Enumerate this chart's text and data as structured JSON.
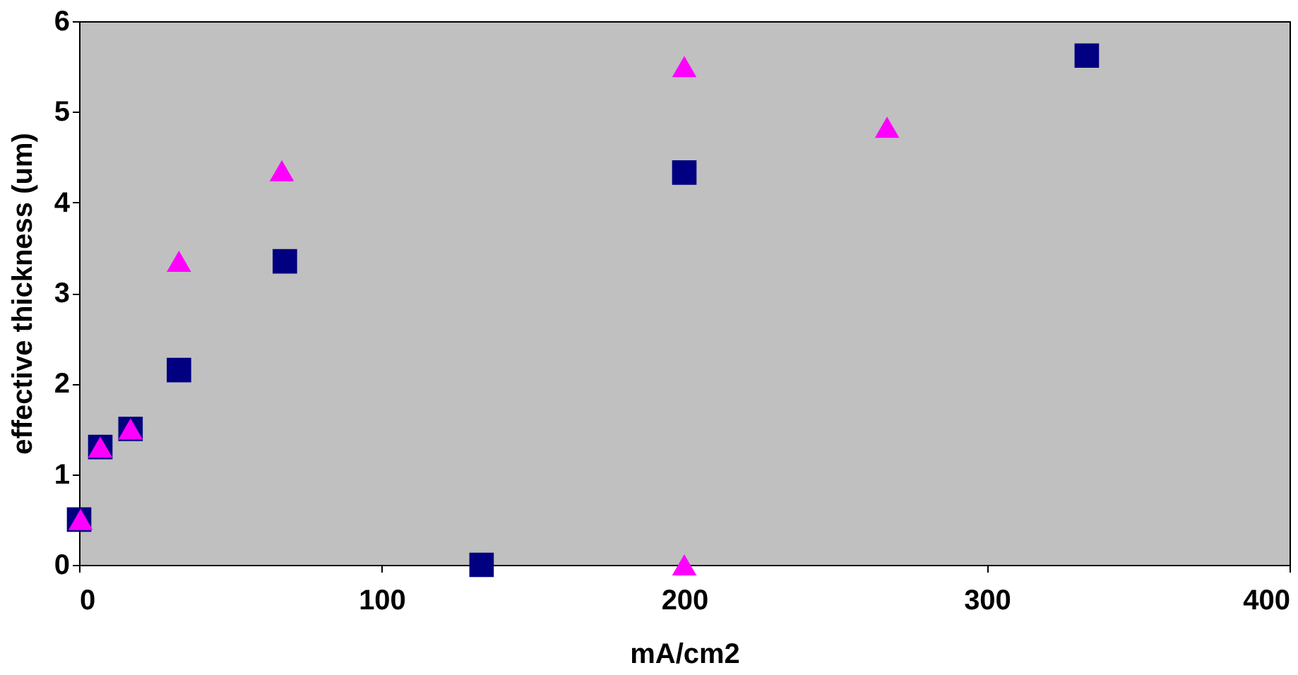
{
  "chart_data": {
    "type": "scatter",
    "xlabel": "mA/cm2",
    "ylabel": "effective thickness (um)",
    "xlim": [
      0,
      400
    ],
    "xticks": [
      0,
      100,
      200,
      300,
      400
    ],
    "ylim": [
      0,
      6
    ],
    "yticks": [
      0,
      1,
      2,
      3,
      4,
      5,
      6
    ],
    "grid": false,
    "legend": false,
    "series": [
      {
        "color": "#000080",
        "marker": "square",
        "x": [
          0,
          7,
          17,
          33,
          68,
          133,
          200,
          333
        ],
        "values": [
          0.5,
          1.3,
          1.5,
          2.15,
          3.35,
          0,
          4.33,
          5.62
        ]
      },
      {
        "color": "#ff00ff",
        "marker": "triangle",
        "x": [
          0.5,
          7,
          17,
          33,
          67,
          200,
          200,
          267
        ],
        "values": [
          0.5,
          1.3,
          1.5,
          3.35,
          4.35,
          5.5,
          0,
          4.83
        ]
      }
    ]
  }
}
